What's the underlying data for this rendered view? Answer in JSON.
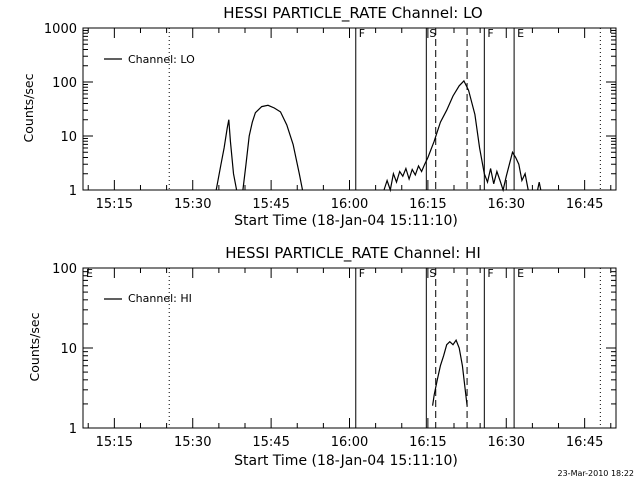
{
  "footer": {
    "timestamp": "23-Mar-2010 18:22"
  },
  "chart_data": [
    {
      "type": "line",
      "title": "HESSI PARTICLE_RATE Channel: LO",
      "xlabel": "Start Time (18-Jan-04 15:11:10)",
      "ylabel": "Counts/sec",
      "ylog": true,
      "xlim": [
        15.15,
        16.85
      ],
      "ylim": [
        1,
        1000
      ],
      "x_ticks": [
        15.25,
        15.5,
        15.75,
        16.0,
        16.25,
        16.5,
        16.75
      ],
      "x_tick_labels": [
        "15:15",
        "15:30",
        "15:45",
        "16:00",
        "16:15",
        "16:30",
        "16:45"
      ],
      "y_ticks": [
        1,
        10,
        100,
        1000
      ],
      "y_tick_labels": [
        "1",
        "10",
        "100",
        "1000"
      ],
      "legend": {
        "position": "top-left",
        "entries": [
          "Channel: LO"
        ]
      },
      "markers": [
        {
          "x": 15.425,
          "style": "dotted",
          "label": ""
        },
        {
          "x": 16.02,
          "style": "solid",
          "label": "F"
        },
        {
          "x": 16.245,
          "style": "solid",
          "label": "S"
        },
        {
          "x": 16.275,
          "style": "dashed",
          "label": ""
        },
        {
          "x": 16.375,
          "style": "dashed",
          "label": ""
        },
        {
          "x": 16.43,
          "style": "solid",
          "label": "F"
        },
        {
          "x": 16.525,
          "style": "solid",
          "label": "E"
        },
        {
          "x": 16.8,
          "style": "dotted",
          "label": ""
        }
      ],
      "series": [
        {
          "name": "Channel: LO",
          "segments": [
            [
              [
                15.575,
                1
              ],
              [
                15.59,
                3
              ],
              [
                15.6,
                6
              ],
              [
                15.61,
                14
              ],
              [
                15.615,
                20
              ],
              [
                15.62,
                8
              ],
              [
                15.63,
                2
              ],
              [
                15.64,
                1
              ]
            ],
            [
              [
                15.66,
                1
              ],
              [
                15.67,
                3
              ],
              [
                15.68,
                10
              ],
              [
                15.69,
                18
              ],
              [
                15.7,
                27
              ],
              [
                15.72,
                35
              ],
              [
                15.74,
                37
              ],
              [
                15.76,
                33
              ],
              [
                15.78,
                28
              ],
              [
                15.8,
                16
              ],
              [
                15.82,
                7
              ],
              [
                15.84,
                2
              ],
              [
                15.85,
                1
              ]
            ],
            [
              [
                16.11,
                1
              ],
              [
                16.12,
                1.5
              ],
              [
                16.13,
                1
              ],
              [
                16.14,
                2
              ],
              [
                16.15,
                1.4
              ],
              [
                16.16,
                2.2
              ],
              [
                16.17,
                1.8
              ],
              [
                16.18,
                2.5
              ],
              [
                16.19,
                1.6
              ],
              [
                16.2,
                2.4
              ],
              [
                16.21,
                1.9
              ],
              [
                16.22,
                2.8
              ],
              [
                16.23,
                2.2
              ],
              [
                16.24,
                3
              ],
              [
                16.25,
                4
              ],
              [
                16.27,
                8
              ],
              [
                16.29,
                18
              ],
              [
                16.31,
                30
              ],
              [
                16.33,
                55
              ],
              [
                16.35,
                85
              ],
              [
                16.365,
                105
              ],
              [
                16.38,
                70
              ],
              [
                16.4,
                25
              ],
              [
                16.415,
                6
              ],
              [
                16.43,
                2
              ],
              [
                16.44,
                1.4
              ],
              [
                16.45,
                2.5
              ],
              [
                16.46,
                1.3
              ],
              [
                16.47,
                2.2
              ],
              [
                16.48,
                1.5
              ],
              [
                16.49,
                1
              ],
              [
                16.5,
                1.8
              ],
              [
                16.51,
                3
              ],
              [
                16.52,
                5
              ],
              [
                16.53,
                4
              ],
              [
                16.54,
                3
              ],
              [
                16.55,
                1.5
              ],
              [
                16.56,
                2
              ],
              [
                16.57,
                1
              ]
            ],
            [
              [
                16.6,
                1
              ],
              [
                16.605,
                1.4
              ],
              [
                16.61,
                1
              ]
            ]
          ]
        }
      ]
    },
    {
      "type": "line",
      "title": "HESSI PARTICLE_RATE Channel: HI",
      "xlabel": "Start Time (18-Jan-04 15:11:10)",
      "ylabel": "Counts/sec",
      "ylog": true,
      "xlim": [
        15.15,
        16.85
      ],
      "ylim": [
        1,
        100
      ],
      "x_ticks": [
        15.25,
        15.5,
        15.75,
        16.0,
        16.25,
        16.5,
        16.75
      ],
      "x_tick_labels": [
        "15:15",
        "15:30",
        "15:45",
        "16:00",
        "16:15",
        "16:30",
        "16:45"
      ],
      "y_ticks": [
        1,
        10,
        100
      ],
      "y_tick_labels": [
        "1",
        "10",
        "100"
      ],
      "legend": {
        "position": "top-left",
        "entries": [
          "Channel: HI"
        ]
      },
      "markers": [
        {
          "x": 15.15,
          "style": "none",
          "label": "E"
        },
        {
          "x": 15.425,
          "style": "dotted",
          "label": ""
        },
        {
          "x": 16.02,
          "style": "solid",
          "label": "F"
        },
        {
          "x": 16.245,
          "style": "solid",
          "label": "S"
        },
        {
          "x": 16.275,
          "style": "dashed",
          "label": ""
        },
        {
          "x": 16.375,
          "style": "dashed",
          "label": ""
        },
        {
          "x": 16.43,
          "style": "solid",
          "label": "F"
        },
        {
          "x": 16.525,
          "style": "solid",
          "label": "E"
        },
        {
          "x": 16.8,
          "style": "dotted",
          "label": ""
        }
      ],
      "series": [
        {
          "name": "Channel: HI",
          "segments": [
            [
              [
                16.265,
                1.9
              ],
              [
                16.27,
                2.6
              ],
              [
                16.28,
                4
              ],
              [
                16.29,
                6
              ],
              [
                16.3,
                8
              ],
              [
                16.31,
                11
              ],
              [
                16.32,
                12
              ],
              [
                16.33,
                11
              ],
              [
                16.34,
                12.5
              ],
              [
                16.35,
                10
              ],
              [
                16.36,
                6
              ],
              [
                16.37,
                2.8
              ],
              [
                16.375,
                1.9
              ]
            ]
          ]
        }
      ]
    }
  ]
}
